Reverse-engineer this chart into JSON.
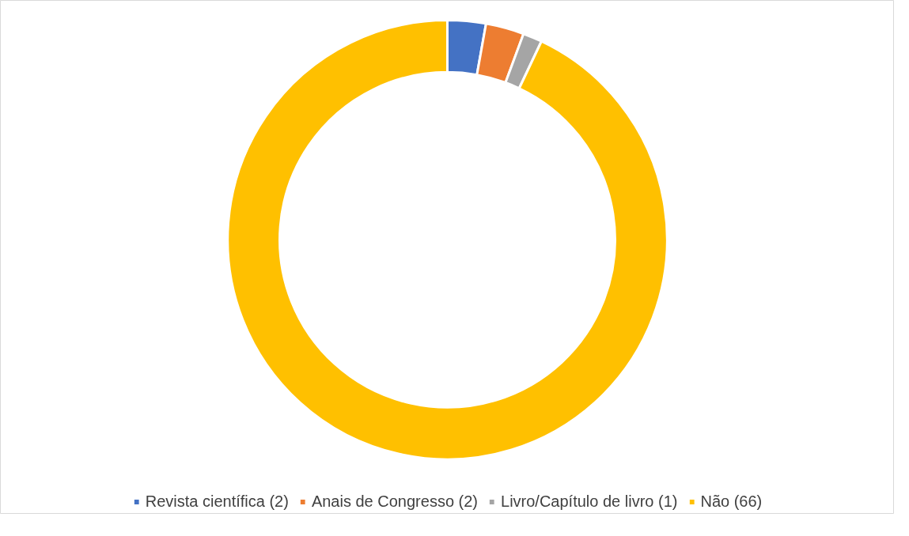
{
  "chart_data": {
    "type": "donut",
    "categories": [
      "Revista científica (2)",
      "Anais de Congresso (2)",
      "Livro/Capítulo de livro (1)",
      "Não (66)"
    ],
    "values": [
      2,
      2,
      1,
      66
    ],
    "colors": [
      "#4472c4",
      "#ed7d31",
      "#a5a5a5",
      "#ffc000"
    ],
    "legend": "bottom"
  }
}
